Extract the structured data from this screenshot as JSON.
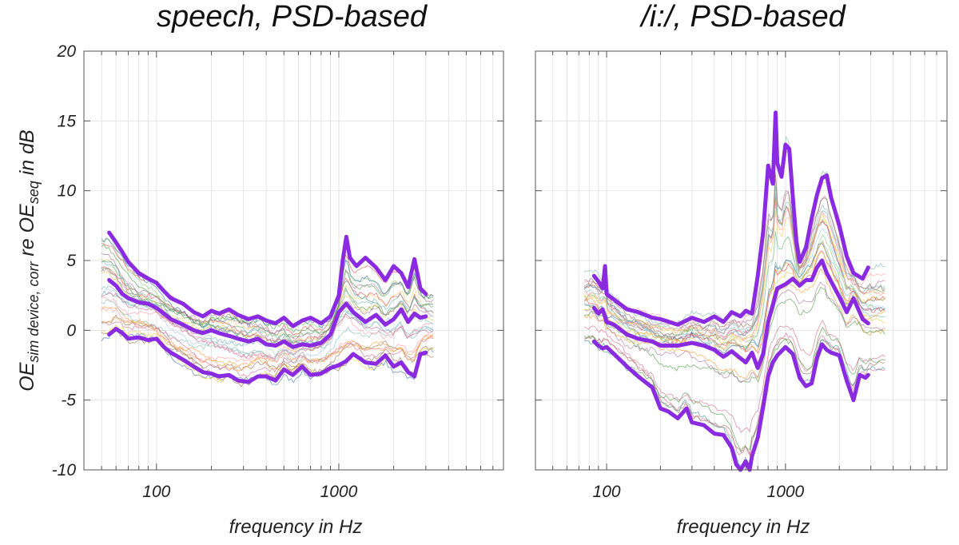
{
  "chart_data": [
    {
      "type": "line",
      "title": "speech, PSD-based",
      "xlabel": "frequency in Hz",
      "ylabel": {
        "base": "OE",
        "sub1": "sim device, corr",
        "mid": " re OE",
        "sub2": "seq",
        "tail": " in dB"
      },
      "x_scale": "log",
      "xlim": [
        40,
        8000
      ],
      "ylim": [
        -10,
        20
      ],
      "xticks": [
        {
          "value": 100,
          "label": "100"
        },
        {
          "value": 1000,
          "label": "1000"
        }
      ],
      "yticks": [
        {
          "value": 20,
          "label": "20"
        },
        {
          "value": 15,
          "label": "15"
        },
        {
          "value": 10,
          "label": "10"
        },
        {
          "value": 5,
          "label": "5"
        },
        {
          "value": 0,
          "label": "0"
        },
        {
          "value": -5,
          "label": "-5"
        },
        {
          "value": -10,
          "label": "-10"
        }
      ],
      "grid": true,
      "summary_series": [
        {
          "name": "upper",
          "color": "#8a2be2",
          "x": [
            55,
            60,
            65,
            70,
            80,
            90,
            100,
            110,
            120,
            140,
            160,
            180,
            200,
            220,
            250,
            280,
            320,
            360,
            400,
            450,
            500,
            560,
            630,
            700,
            800,
            900,
            1000,
            1050,
            1100,
            1150,
            1250,
            1400,
            1600,
            1800,
            2000,
            2200,
            2400,
            2600,
            2800,
            3000
          ],
          "values": [
            7.0,
            6.3,
            5.6,
            4.9,
            4.1,
            3.7,
            3.4,
            2.8,
            2.3,
            1.9,
            1.3,
            1.0,
            1.4,
            1.2,
            1.5,
            1.1,
            0.8,
            1.0,
            0.7,
            0.5,
            0.9,
            0.3,
            0.7,
            0.9,
            0.5,
            1.0,
            2.5,
            5.0,
            6.7,
            5.2,
            4.6,
            5.2,
            4.5,
            3.6,
            4.6,
            4.1,
            3.1,
            5.1,
            3.0,
            2.6
          ]
        },
        {
          "name": "median",
          "color": "#8a2be2",
          "x": [
            55,
            60,
            65,
            70,
            80,
            90,
            100,
            110,
            120,
            140,
            160,
            180,
            200,
            220,
            250,
            280,
            320,
            360,
            400,
            450,
            500,
            560,
            630,
            700,
            800,
            900,
            1000,
            1100,
            1200,
            1400,
            1600,
            1800,
            2000,
            2200,
            2400,
            2600,
            2800,
            3000
          ],
          "values": [
            3.6,
            3.2,
            2.6,
            2.3,
            2.0,
            1.9,
            1.6,
            1.2,
            0.8,
            0.4,
            0.0,
            -0.2,
            0.0,
            -0.2,
            -0.4,
            -0.6,
            -0.8,
            -0.6,
            -1.0,
            -1.1,
            -0.8,
            -1.2,
            -1.0,
            -1.1,
            -0.9,
            -0.3,
            1.3,
            1.9,
            1.3,
            0.6,
            1.1,
            0.4,
            0.8,
            1.5,
            0.6,
            1.2,
            0.9,
            1.0
          ]
        },
        {
          "name": "lower",
          "color": "#8a2be2",
          "x": [
            55,
            60,
            65,
            70,
            80,
            90,
            100,
            110,
            120,
            140,
            160,
            180,
            200,
            220,
            250,
            280,
            320,
            360,
            400,
            450,
            500,
            560,
            630,
            700,
            800,
            900,
            1000,
            1100,
            1200,
            1400,
            1600,
            1800,
            2000,
            2200,
            2400,
            2600,
            2800,
            3000
          ],
          "values": [
            -0.3,
            0.1,
            -0.2,
            -0.6,
            -0.5,
            -0.7,
            -0.6,
            -1.2,
            -1.6,
            -2.1,
            -2.6,
            -3.0,
            -3.1,
            -3.3,
            -3.2,
            -3.6,
            -3.7,
            -3.3,
            -3.3,
            -3.6,
            -2.8,
            -3.2,
            -2.6,
            -3.2,
            -3.1,
            -2.7,
            -2.5,
            -2.2,
            -1.7,
            -2.3,
            -2.4,
            -1.8,
            -2.6,
            -2.3,
            -3.0,
            -3.3,
            -1.7,
            -1.6
          ]
        }
      ]
    },
    {
      "type": "line",
      "title": "/i:/, PSD-based",
      "xlabel": "frequency in Hz",
      "x_scale": "log",
      "xlim": [
        40,
        8000
      ],
      "ylim": [
        -10,
        20
      ],
      "xticks": [
        {
          "value": 100,
          "label": "100"
        },
        {
          "value": 1000,
          "label": "1000"
        }
      ],
      "yticks": [
        {
          "value": 20,
          "label": ""
        },
        {
          "value": 15,
          "label": ""
        },
        {
          "value": 10,
          "label": ""
        },
        {
          "value": 5,
          "label": ""
        },
        {
          "value": 0,
          "label": ""
        },
        {
          "value": -5,
          "label": ""
        },
        {
          "value": -10,
          "label": ""
        }
      ],
      "grid": true,
      "summary_series": [
        {
          "name": "upper",
          "color": "#8a2be2",
          "x": [
            85,
            90,
            95,
            98,
            100,
            110,
            130,
            150,
            180,
            200,
            250,
            300,
            350,
            400,
            450,
            500,
            560,
            600,
            650,
            700,
            750,
            800,
            850,
            880,
            900,
            950,
            1000,
            1050,
            1100,
            1150,
            1200,
            1300,
            1400,
            1500,
            1600,
            1700,
            1800,
            2000,
            2200,
            2400,
            2700,
            2900
          ],
          "values": [
            3.9,
            3.5,
            3.0,
            4.6,
            2.6,
            2.2,
            1.5,
            1.3,
            0.9,
            0.8,
            0.4,
            0.9,
            0.6,
            1.0,
            0.6,
            1.3,
            1.0,
            1.4,
            1.2,
            3.9,
            7.0,
            11.8,
            10.5,
            15.6,
            12.0,
            11.0,
            13.3,
            13.0,
            9.5,
            6.4,
            4.9,
            5.9,
            8.0,
            9.7,
            10.9,
            11.1,
            9.5,
            7.5,
            5.3,
            4.1,
            3.7,
            4.5
          ]
        },
        {
          "name": "median",
          "color": "#8a2be2",
          "x": [
            85,
            90,
            95,
            100,
            110,
            130,
            150,
            180,
            200,
            250,
            300,
            350,
            400,
            450,
            500,
            560,
            600,
            650,
            700,
            750,
            800,
            900,
            1000,
            1100,
            1200,
            1300,
            1400,
            1500,
            1600,
            1700,
            1800,
            2000,
            2200,
            2400,
            2700,
            2900
          ],
          "values": [
            1.6,
            1.2,
            1.5,
            0.6,
            0.4,
            -0.3,
            -0.6,
            -0.8,
            -1.1,
            -1.1,
            -0.9,
            -1.1,
            -1.4,
            -1.9,
            -1.5,
            -2.0,
            -2.3,
            -1.6,
            -2.7,
            -1.7,
            0.6,
            3.0,
            3.3,
            3.7,
            3.2,
            3.6,
            3.6,
            4.5,
            5.0,
            4.1,
            3.5,
            2.4,
            1.3,
            2.3,
            0.8,
            0.5
          ]
        },
        {
          "name": "lower",
          "color": "#8a2be2",
          "x": [
            85,
            90,
            95,
            100,
            110,
            130,
            150,
            180,
            200,
            220,
            250,
            280,
            300,
            350,
            400,
            450,
            500,
            530,
            560,
            600,
            630,
            650,
            700,
            750,
            800,
            850,
            900,
            1000,
            1100,
            1200,
            1300,
            1400,
            1500,
            1600,
            1700,
            1800,
            2000,
            2200,
            2400,
            2600,
            2800,
            2900
          ],
          "values": [
            -0.8,
            -1.1,
            -1.3,
            -1.2,
            -1.7,
            -2.6,
            -3.3,
            -4.1,
            -5.6,
            -5.8,
            -6.3,
            -5.6,
            -6.6,
            -6.8,
            -7.4,
            -7.5,
            -8.4,
            -9.6,
            -10.1,
            -9.4,
            -10.2,
            -9.0,
            -7.7,
            -5.5,
            -3.3,
            -2.3,
            -1.8,
            -1.2,
            -1.7,
            -3.4,
            -4.0,
            -3.8,
            -2.0,
            -1.0,
            -1.4,
            -1.6,
            -1.8,
            -3.6,
            -5.0,
            -3.2,
            -3.4,
            -3.2
          ]
        }
      ]
    }
  ]
}
